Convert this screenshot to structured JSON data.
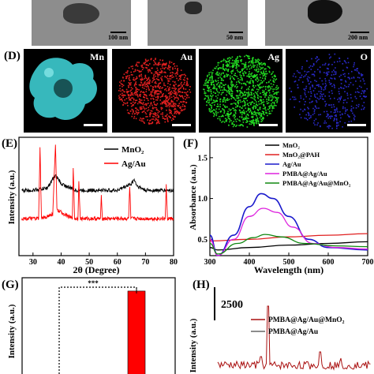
{
  "panel_labels": {
    "D": "(D)",
    "E": "(E)",
    "F": "(F)",
    "G": "(G)",
    "H": "(H)"
  },
  "tem": {
    "scale_1": "100 nm",
    "scale_2": "50 nm",
    "scale_3": "200 nm"
  },
  "eds_labels": [
    "Mn",
    "Au",
    "Ag",
    "O"
  ],
  "colors": {
    "mn": "#3fd2d6",
    "au": "#e02020",
    "ag": "#22dd22",
    "o": "#2a2acc"
  },
  "chart_data": [
    {
      "type": "line",
      "panel": "E",
      "xlabel": "2θ (Degree)",
      "ylabel": "Intensity (a.u.)",
      "xlim": [
        25,
        80
      ],
      "x_ticks": [
        "30",
        "40",
        "50",
        "60",
        "70",
        "80"
      ],
      "series": [
        {
          "name": "MnO₂",
          "color": "#000000",
          "points": [
            [
              26,
              0.6
            ],
            [
              30,
              0.6
            ],
            [
              35,
              0.62
            ],
            [
              37,
              0.7
            ],
            [
              38,
              0.74
            ],
            [
              40,
              0.66
            ],
            [
              45,
              0.6
            ],
            [
              50,
              0.6
            ],
            [
              55,
              0.6
            ],
            [
              60,
              0.6
            ],
            [
              65,
              0.66
            ],
            [
              66,
              0.7
            ],
            [
              67,
              0.64
            ],
            [
              70,
              0.6
            ],
            [
              75,
              0.6
            ],
            [
              80,
              0.6
            ]
          ]
        },
        {
          "name": "Ag/Au",
          "color": "#ff0000",
          "points": [
            [
              26,
              0.34
            ],
            [
              30,
              0.34
            ],
            [
              32,
              0.34
            ],
            [
              32.5,
              0.98
            ],
            [
              33,
              0.34
            ],
            [
              37,
              0.38
            ],
            [
              38,
              1.02
            ],
            [
              38.5,
              0.42
            ],
            [
              44,
              0.34
            ],
            [
              44.3,
              0.82
            ],
            [
              44.8,
              0.34
            ],
            [
              46,
              0.34
            ],
            [
              46.3,
              0.7
            ],
            [
              46.8,
              0.34
            ],
            [
              54,
              0.34
            ],
            [
              54.3,
              0.54
            ],
            [
              54.7,
              0.34
            ],
            [
              64,
              0.34
            ],
            [
              64.4,
              0.64
            ],
            [
              64.8,
              0.34
            ],
            [
              77,
              0.34
            ],
            [
              77.4,
              0.64
            ],
            [
              77.8,
              0.34
            ],
            [
              80,
              0.34
            ]
          ]
        }
      ]
    },
    {
      "type": "line",
      "panel": "F",
      "xlabel": "Wavelength (nm)",
      "ylabel": "Absorbance (a.u.)",
      "xlim": [
        300,
        700
      ],
      "ylim": [
        0.3,
        1.75
      ],
      "x_ticks": [
        "300",
        "400",
        "500",
        "600",
        "700"
      ],
      "y_ticks": [
        "0.5",
        "1.0",
        "1.5"
      ],
      "series": [
        {
          "name": "MnO₂",
          "color": "#000000",
          "points": [
            [
              300,
              0.4
            ],
            [
              320,
              0.37
            ],
            [
              400,
              0.4
            ],
            [
              500,
              0.43
            ],
            [
              600,
              0.45
            ],
            [
              700,
              0.47
            ]
          ]
        },
        {
          "name": "MnO₂@PAH",
          "color": "#e02020",
          "points": [
            [
              300,
              0.48
            ],
            [
              400,
              0.5
            ],
            [
              500,
              0.53
            ],
            [
              600,
              0.55
            ],
            [
              700,
              0.57
            ]
          ]
        },
        {
          "name": "Ag/Au",
          "color": "#1a1acc",
          "points": [
            [
              300,
              0.55
            ],
            [
              320,
              0.3
            ],
            [
              360,
              0.55
            ],
            [
              400,
              0.9
            ],
            [
              430,
              1.06
            ],
            [
              460,
              1.0
            ],
            [
              500,
              0.78
            ],
            [
              550,
              0.5
            ],
            [
              600,
              0.4
            ],
            [
              700,
              0.37
            ]
          ]
        },
        {
          "name": "PMBA@Ag/Au",
          "color": "#dd22dd",
          "points": [
            [
              300,
              0.5
            ],
            [
              320,
              0.3
            ],
            [
              360,
              0.5
            ],
            [
              400,
              0.78
            ],
            [
              435,
              0.88
            ],
            [
              470,
              0.83
            ],
            [
              510,
              0.65
            ],
            [
              560,
              0.45
            ],
            [
              620,
              0.4
            ],
            [
              700,
              0.38
            ]
          ]
        },
        {
          "name": "PMBA@Ag/Au@MnO₂",
          "color": "#118811",
          "points": [
            [
              300,
              0.45
            ],
            [
              320,
              0.32
            ],
            [
              370,
              0.45
            ],
            [
              410,
              0.52
            ],
            [
              440,
              0.56
            ],
            [
              480,
              0.53
            ],
            [
              540,
              0.45
            ],
            [
              620,
              0.42
            ],
            [
              700,
              0.41
            ]
          ]
        }
      ]
    },
    {
      "type": "bar",
      "panel": "G",
      "ylabel": "Intensity (a.u.)",
      "categories": [
        "",
        ""
      ],
      "values": [
        0,
        0.87
      ],
      "ylim": [
        0,
        1
      ],
      "color": "#ff0000",
      "annotation": "***"
    },
    {
      "type": "line",
      "panel": "H",
      "ylabel": "Intensity (a.u.)",
      "scale_bar": "2500",
      "series": [
        {
          "name": "PMBA@Ag/Au@MnO₂",
          "color": "#aa1111"
        },
        {
          "name": "PMBA@Ag/Au",
          "color": "#666666"
        }
      ]
    }
  ]
}
